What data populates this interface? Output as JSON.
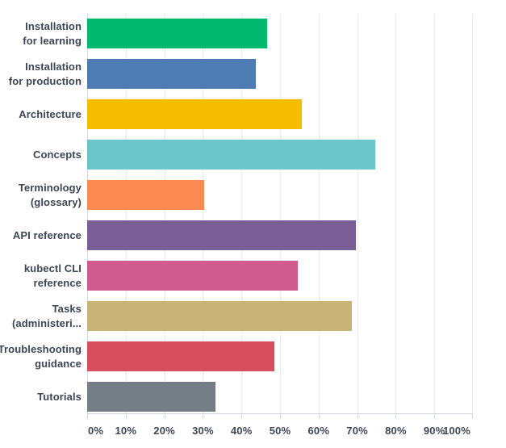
{
  "chart_data": {
    "type": "bar",
    "orientation": "horizontal",
    "title": "",
    "xlabel": "",
    "ylabel": "",
    "xlim": [
      0,
      100
    ],
    "grid": true,
    "legend_position": "none",
    "value_unit": "percent",
    "x_tick_labels": [
      "0%",
      "10%",
      "20%",
      "30%",
      "40%",
      "50%",
      "60%",
      "70%",
      "80%",
      "90%",
      "100%"
    ],
    "categories": [
      "Installation for learning",
      "Installation for production",
      "Architecture",
      "Concepts",
      "Terminology (glossary)",
      "API reference",
      "kubectl CLI reference",
      "Tasks (administeri...",
      "Troubleshooting guidance",
      "Tutorials"
    ],
    "category_label_lines": [
      [
        "Installation",
        "for learning"
      ],
      [
        "Installation",
        "for production"
      ],
      [
        "Architecture"
      ],
      [
        "Concepts"
      ],
      [
        "Terminology",
        "(glossary)"
      ],
      [
        "API reference"
      ],
      [
        "kubectl CLI",
        "reference"
      ],
      [
        "Tasks",
        "(administeri..."
      ],
      [
        "Troubleshooting",
        "guidance"
      ],
      [
        "Tutorials"
      ]
    ],
    "values": [
      46.7,
      43.7,
      55.6,
      74.7,
      30.3,
      69.7,
      54.6,
      68.6,
      48.5,
      33.3
    ],
    "bar_colors": [
      "#00b96e",
      "#4e7cb2",
      "#f6be00",
      "#6ac6cb",
      "#fb8a50",
      "#7a5f96",
      "#d05c8d",
      "#c8b476",
      "#d84e5d",
      "#757d86"
    ]
  },
  "style": {
    "background": "#ffffff",
    "label_color": "#3d4655",
    "grid_color": "#ececec",
    "axis_color": "#d5d8db"
  }
}
